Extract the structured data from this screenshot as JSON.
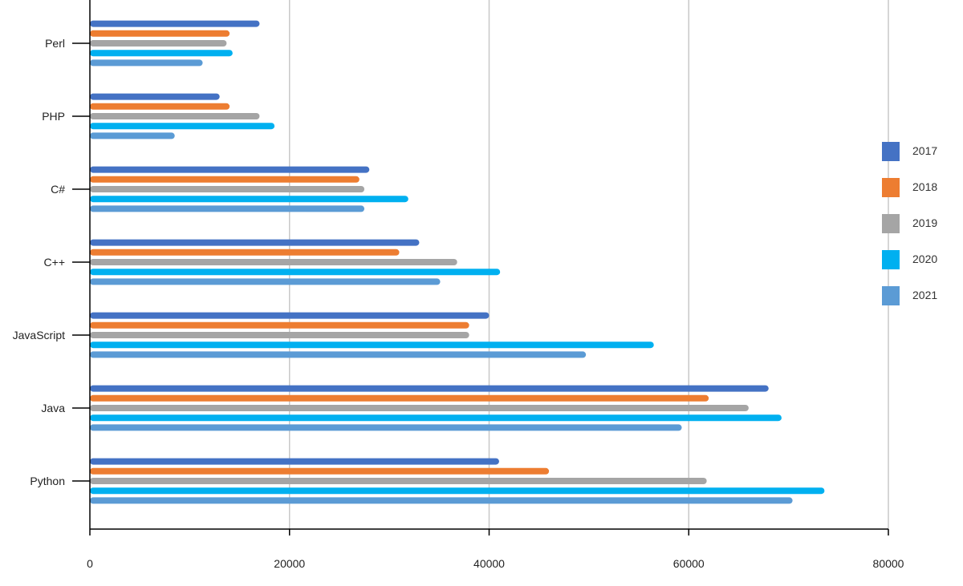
{
  "chart_data": {
    "type": "bar",
    "orientation": "horizontal",
    "title": "",
    "xlabel": "",
    "ylabel": "",
    "categories": [
      "Perl",
      "PHP",
      "C#",
      "C++",
      "JavaScript",
      "Java",
      "Python"
    ],
    "xlim": [
      0,
      80000
    ],
    "x_ticks": [
      "0",
      "20000",
      "40000",
      "60000",
      "80000"
    ],
    "grid": "vertical gridlines",
    "legend_position": "right",
    "series": [
      {
        "name": "2017",
        "color": "#4472C4",
        "values": [
          17000,
          13000,
          28000,
          33000,
          40000,
          68000,
          41000
        ]
      },
      {
        "name": "2018",
        "color": "#ED7D31",
        "values": [
          14000,
          14000,
          27000,
          31000,
          38000,
          62000,
          46000
        ]
      },
      {
        "name": "2019",
        "color": "#A5A5A5",
        "values": [
          13700,
          17000,
          27500,
          36800,
          38000,
          66000,
          61800
        ]
      },
      {
        "name": "2020",
        "color": "#00B0F0",
        "values": [
          14300,
          18500,
          31900,
          41100,
          56500,
          69300,
          73600
        ]
      },
      {
        "name": "2021",
        "color": "#5B9BD5",
        "values": [
          11300,
          8500,
          27500,
          35100,
          49700,
          59300,
          70400
        ]
      }
    ]
  }
}
